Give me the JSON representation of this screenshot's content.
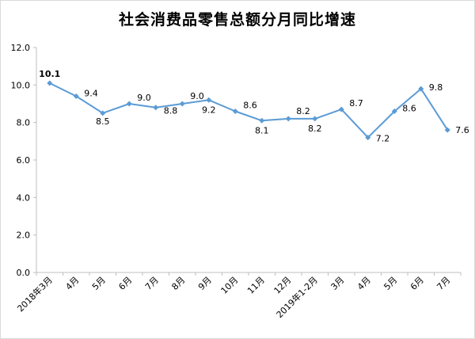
{
  "chart_data": {
    "type": "line",
    "title": "社会消费品零售总额分月同比增速",
    "categories": [
      "2018年3月",
      "4月",
      "5月",
      "6月",
      "7月",
      "8月",
      "9月",
      "10月",
      "11月",
      "12月",
      "2019年1-2月",
      "3月",
      "4月",
      "5月",
      "6月",
      "7月"
    ],
    "series": [
      {
        "values": [
          10.1,
          9.4,
          8.5,
          9.0,
          8.8,
          9.0,
          9.2,
          8.6,
          8.1,
          8.2,
          8.2,
          8.7,
          7.2,
          8.6,
          9.8,
          7.6
        ]
      }
    ],
    "data_labels": [
      "10.1",
      "9.4",
      "8.5",
      "9.0",
      "8.8",
      "9.0",
      "9.2",
      "8.6",
      "8.1",
      "8.2",
      "8.2",
      "8.7",
      "7.2",
      "8.6",
      "9.8",
      "7.6"
    ],
    "yticks": [
      "0.0",
      "2.0",
      "4.0",
      "6.0",
      "8.0",
      "10.0",
      "12.0"
    ],
    "ylim": [
      0,
      12
    ],
    "grid": false,
    "legend": "none",
    "colors": {
      "line": "#5b9bd5",
      "axis": "#bfbfbf"
    }
  }
}
